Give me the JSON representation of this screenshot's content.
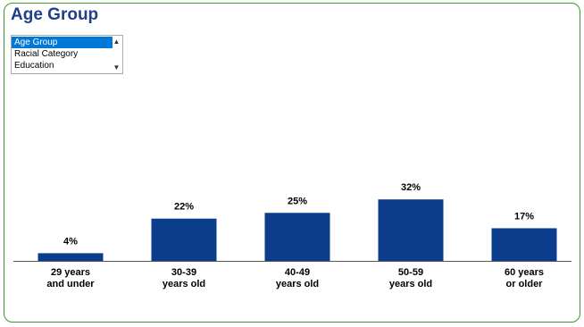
{
  "title": "Age Group",
  "selector": {
    "options": [
      "Age Group",
      "Racial Category",
      "Education"
    ],
    "selected": "Age Group",
    "scroll_up_icon": "chevron-up-icon",
    "scroll_down_icon": "chevron-down-icon"
  },
  "colors": {
    "bar": "#0b3d8c",
    "title": "#1f3f8a",
    "border": "#3a9a2a",
    "selected": "#0078d7"
  },
  "chart_data": {
    "type": "bar",
    "categories": [
      [
        "29 years",
        "and under"
      ],
      [
        "30-39",
        "years old"
      ],
      [
        "40-49",
        "years old"
      ],
      [
        "50-59",
        "years old"
      ],
      [
        "60 years",
        "or older"
      ]
    ],
    "values": [
      4,
      22,
      25,
      32,
      17
    ],
    "value_labels": [
      "4%",
      "22%",
      "25%",
      "32%",
      "17%"
    ],
    "unit": "%",
    "ylim": [
      0,
      100
    ],
    "grid": false,
    "legend": "none"
  }
}
